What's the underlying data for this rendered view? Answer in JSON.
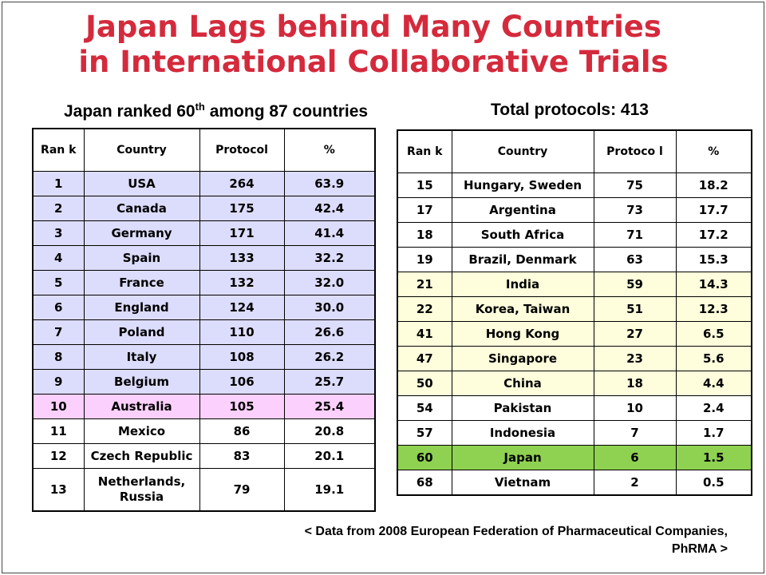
{
  "title": {
    "line1": "Japan Lags behind Many Countries",
    "line2": "in International Collaborative Trials"
  },
  "subtitle_left": {
    "prefix": "Japan ranked 60",
    "sup": "th",
    "suffix": " among 87 countries"
  },
  "subtitle_right": "Total protocols: 413",
  "table_left": {
    "headers": [
      "Ran k",
      "Country",
      "Protocol",
      "%"
    ],
    "rows": [
      {
        "rank": "1",
        "country": "USA",
        "protocol": "264",
        "pct": "63.9",
        "style": "blue"
      },
      {
        "rank": "2",
        "country": "Canada",
        "protocol": "175",
        "pct": "42.4",
        "style": "blue"
      },
      {
        "rank": "3",
        "country": "Germany",
        "protocol": "171",
        "pct": "41.4",
        "style": "blue"
      },
      {
        "rank": "4",
        "country": "Spain",
        "protocol": "133",
        "pct": "32.2",
        "style": "blue"
      },
      {
        "rank": "5",
        "country": "France",
        "protocol": "132",
        "pct": "32.0",
        "style": "blue"
      },
      {
        "rank": "6",
        "country": "England",
        "protocol": "124",
        "pct": "30.0",
        "style": "blue"
      },
      {
        "rank": "7",
        "country": "Poland",
        "protocol": "110",
        "pct": "26.6",
        "style": "blue"
      },
      {
        "rank": "8",
        "country": "Italy",
        "protocol": "108",
        "pct": "26.2",
        "style": "blue"
      },
      {
        "rank": "9",
        "country": "Belgium",
        "protocol": "106",
        "pct": "25.7",
        "style": "blue"
      },
      {
        "rank": "10",
        "country": "Australia",
        "protocol": "105",
        "pct": "25.4",
        "style": "pink"
      },
      {
        "rank": "11",
        "country": "Mexico",
        "protocol": "86",
        "pct": "20.8",
        "style": "white"
      },
      {
        "rank": "12",
        "country": "Czech Republic",
        "protocol": "83",
        "pct": "20.1",
        "style": "white"
      },
      {
        "rank": "13",
        "country": "Netherlands, Russia",
        "protocol": "79",
        "pct": "19.1",
        "style": "white"
      }
    ]
  },
  "table_right": {
    "headers": [
      "Ran k",
      "Country",
      "Protoco l",
      "%"
    ],
    "rows": [
      {
        "rank": "15",
        "country": "Hungary, Sweden",
        "protocol": "75",
        "pct": "18.2",
        "style": "white"
      },
      {
        "rank": "17",
        "country": "Argentina",
        "protocol": "73",
        "pct": "17.7",
        "style": "white"
      },
      {
        "rank": "18",
        "country": "South Africa",
        "protocol": "71",
        "pct": "17.2",
        "style": "white"
      },
      {
        "rank": "19",
        "country": "Brazil, Denmark",
        "protocol": "63",
        "pct": "15.3",
        "style": "white"
      },
      {
        "rank": "21",
        "country": "India",
        "protocol": "59",
        "pct": "14.3",
        "style": "yellow"
      },
      {
        "rank": "22",
        "country": "Korea, Taiwan",
        "protocol": "51",
        "pct": "12.3",
        "style": "yellow"
      },
      {
        "rank": "41",
        "country": "Hong Kong",
        "protocol": "27",
        "pct": "6.5",
        "style": "yellow"
      },
      {
        "rank": "47",
        "country": "Singapore",
        "protocol": "23",
        "pct": "5.6",
        "style": "yellow"
      },
      {
        "rank": "50",
        "country": "China",
        "protocol": "18",
        "pct": "4.4",
        "style": "yellow"
      },
      {
        "rank": "54",
        "country": "Pakistan",
        "protocol": "10",
        "pct": "2.4",
        "style": "white"
      },
      {
        "rank": "57",
        "country": "Indonesia",
        "protocol": "7",
        "pct": "1.7",
        "style": "white"
      },
      {
        "rank": "60",
        "country": "Japan",
        "protocol": "6",
        "pct": "1.5",
        "style": "green"
      },
      {
        "rank": "68",
        "country": "Vietnam",
        "protocol": "2",
        "pct": "0.5",
        "style": "white"
      }
    ]
  },
  "footnote": {
    "line1": "< Data from 2008 European Federation of Pharmaceutical Companies,",
    "line2": "PhRMA >"
  },
  "colors": {
    "title": "#d42a3c",
    "top10": "#dcdcfc",
    "australia": "#fcd0fc",
    "asia": "#fefedc",
    "japan": "#8fd151"
  }
}
